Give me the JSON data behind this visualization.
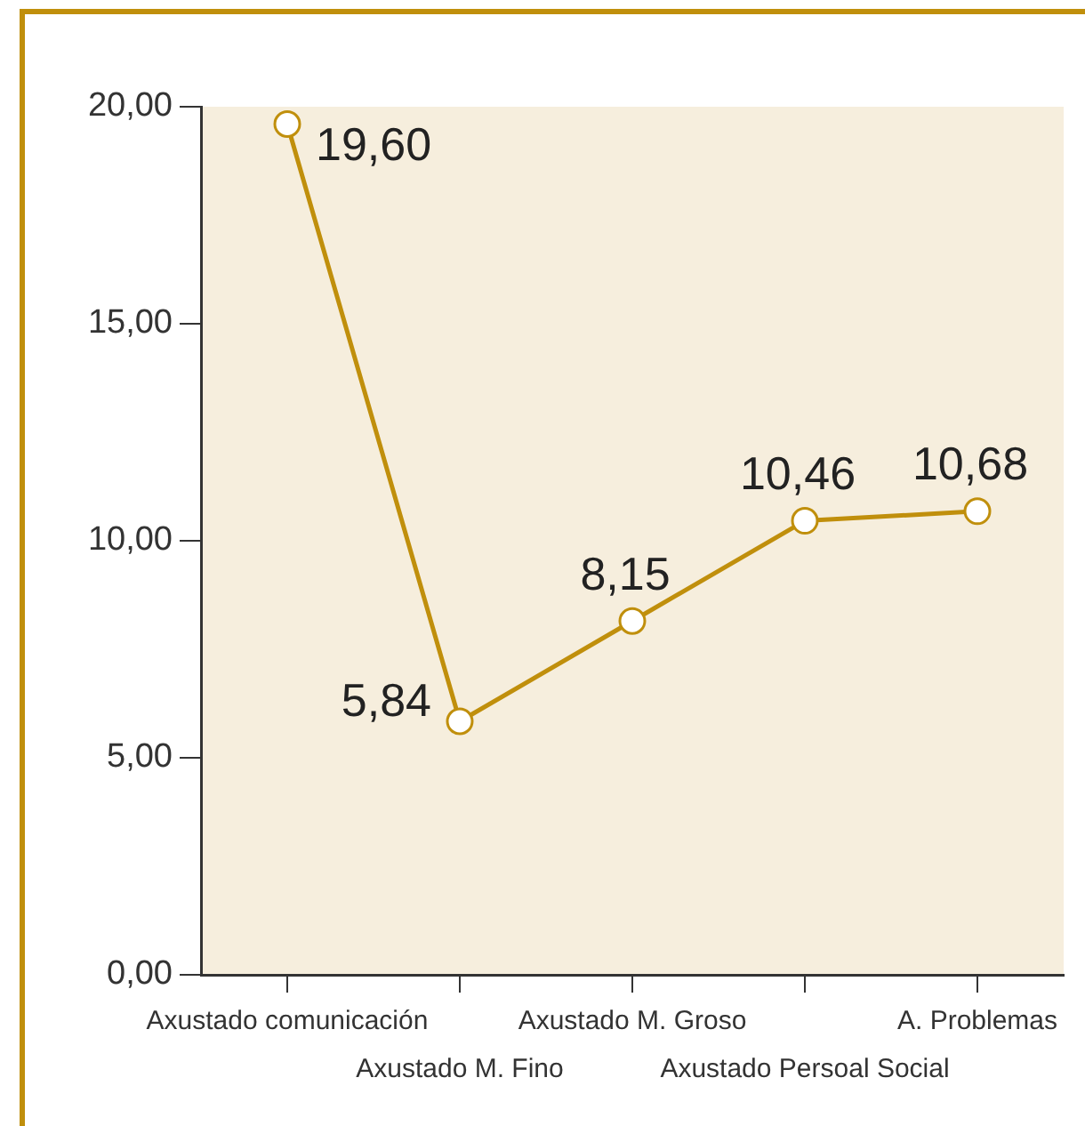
{
  "chart_data": {
    "type": "line",
    "categories": [
      "Axustado comunicación",
      "Axustado M. Fino",
      "Axustado M. Groso",
      "Axustado Persoal Social",
      "A. Problemas"
    ],
    "values": [
      19.6,
      5.84,
      8.15,
      10.46,
      10.68
    ],
    "value_labels": [
      "19,60",
      "5,84",
      "8,15",
      "10,46",
      "10,68"
    ],
    "color": "#c08f0c",
    "ylim": [
      0,
      20
    ],
    "yticks": [
      {
        "value": 0,
        "label": "0,00"
      },
      {
        "value": 5,
        "label": "5,00"
      },
      {
        "value": 10,
        "label": "10,00"
      },
      {
        "value": 15,
        "label": "15,00"
      },
      {
        "value": 20,
        "label": "20,00"
      }
    ],
    "grid": false,
    "legend": false,
    "marker": "circle",
    "line_style": "solid"
  }
}
